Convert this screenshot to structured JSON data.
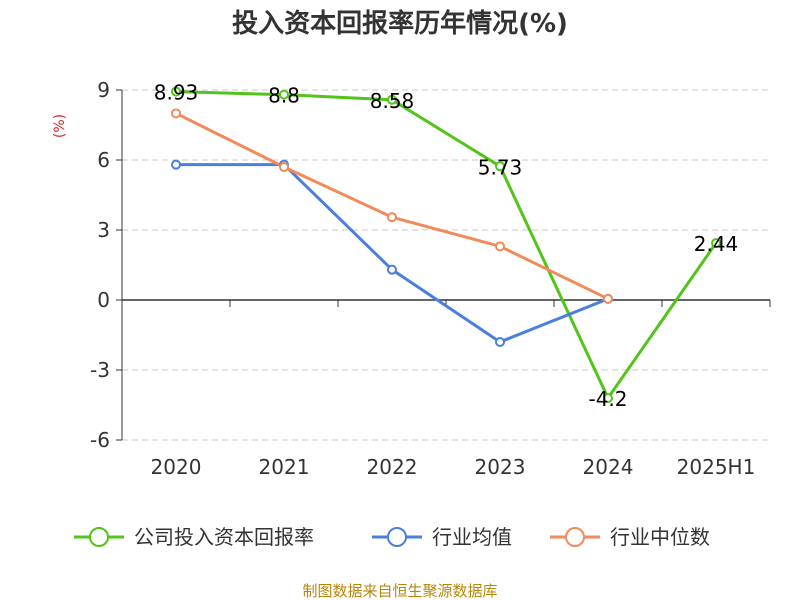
{
  "chart_data": {
    "type": "line",
    "title": "投入资本回报率历年情况(%)",
    "ylabel": "(%)",
    "categories": [
      "2020",
      "2021",
      "2022",
      "2023",
      "2024",
      "2025H1"
    ],
    "ylim": [
      -6,
      9
    ],
    "yticks": [
      9,
      6,
      3,
      0,
      -3,
      -6
    ],
    "grid": true,
    "legend_position": "bottom",
    "series": [
      {
        "name": "公司投入资本回报率",
        "color": "#52c41a",
        "values": [
          8.93,
          8.8,
          8.58,
          5.73,
          -4.2,
          2.44
        ],
        "labels": [
          "8.93",
          "8.8",
          "8.58",
          "5.73",
          "-4.2",
          "2.44"
        ],
        "show_labels": true
      },
      {
        "name": "行业均值",
        "color": "#4a7fdb",
        "values": [
          5.8,
          5.8,
          1.3,
          -1.8,
          0.05,
          null
        ],
        "show_labels": false
      },
      {
        "name": "行业中位数",
        "color": "#f28a5a",
        "values": [
          8.0,
          5.7,
          3.55,
          2.3,
          0.05,
          null
        ],
        "show_labels": false
      }
    ],
    "source": "制图数据来自恒生聚源数据库"
  }
}
